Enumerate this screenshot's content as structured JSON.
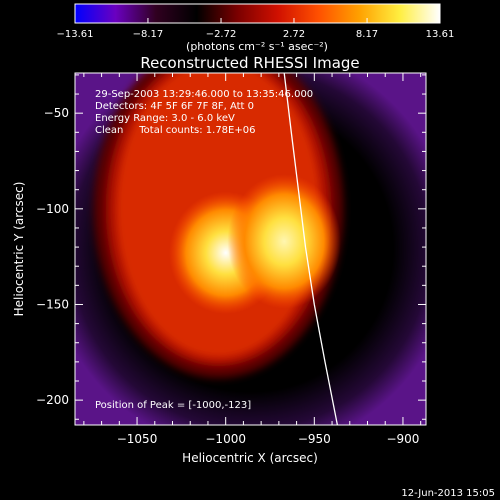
{
  "chart_data": {
    "type": "heatmap",
    "title": "Reconstructed RHESSI Image",
    "xlabel": "Heliocentric X (arcsec)",
    "ylabel": "Heliocentric Y (arcsec)",
    "xlim": [
      -1085,
      -887
    ],
    "ylim": [
      -213,
      -29
    ],
    "x_ticks": [
      -1050,
      -1000,
      -950,
      -900
    ],
    "y_ticks": [
      -50,
      -100,
      -150,
      -200
    ],
    "x_tick_labels": [
      "−1050",
      "−1000",
      "−950",
      "−900"
    ],
    "y_tick_labels": [
      "−50",
      "−100",
      "−150",
      "−200"
    ],
    "colorbar": {
      "min": -13.61,
      "max": 13.61,
      "ticks": [
        -13.61,
        -8.17,
        -2.72,
        2.72,
        8.17,
        13.61
      ],
      "tick_labels": [
        "−13.61",
        "−8.17",
        "−2.72",
        "2.72",
        "8.17",
        "13.61"
      ],
      "unit_label": "(photons cm⁻² s⁻¹ asec⁻²)",
      "colormap": [
        "#0000ff",
        "#6a00c0",
        "#300020",
        "#000000",
        "#7a0000",
        "#d01000",
        "#ff5000",
        "#ffa000",
        "#ffee40",
        "#ffffff"
      ]
    },
    "annotations": [
      "29-Sep-2003 13:29:46.000 to 13:35:46.000",
      "Detectors: 4F 5F 6F 7F 8F, Att 0",
      "Energy Range: 3.0 - 6.0 keV",
      "Clean     Total counts: 1.78E+06"
    ],
    "peak_label": "Position of Peak = [-1000,-123]",
    "peak_position": [
      -1000,
      -123
    ],
    "footer_date": "12-Jun-2013 15:05",
    "limb_curve": [
      [
        -967,
        -29
      ],
      [
        -963,
        -60
      ],
      [
        -959,
        -90
      ],
      [
        -955,
        -120
      ],
      [
        -950,
        -150
      ],
      [
        -944,
        -180
      ],
      [
        -937,
        -213
      ]
    ],
    "sources": [
      {
        "x": -1004,
        "y": -100,
        "sx": 58,
        "sy": 78,
        "value": 8.5
      },
      {
        "x": -1000,
        "y": -123,
        "sx": 10,
        "sy": 10,
        "value": 13.61
      },
      {
        "x": -967,
        "y": -117,
        "sx": 10,
        "sy": 11,
        "value": 11
      }
    ],
    "grid": false
  }
}
